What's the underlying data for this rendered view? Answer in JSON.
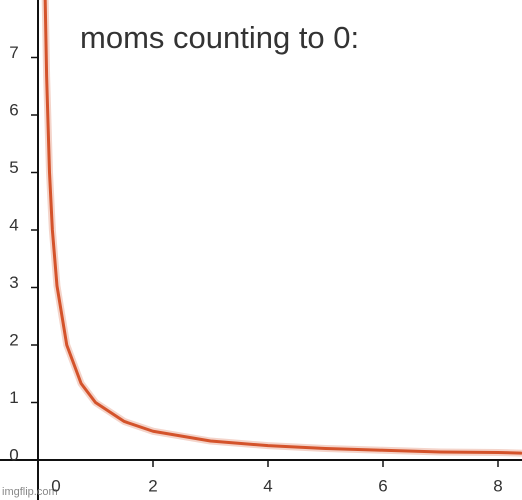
{
  "chart_data": {
    "type": "line",
    "title": "moms counting to 0:",
    "watermark": "imgflip.com",
    "x": [
      0.125,
      0.15,
      0.2,
      0.25,
      0.33,
      0.5,
      0.75,
      1,
      1.5,
      2,
      3,
      4,
      5,
      6,
      7,
      8,
      8.4
    ],
    "series": [
      {
        "color": "#d4532b",
        "values": [
          8,
          6.67,
          5,
          4,
          3.03,
          2,
          1.33,
          1,
          0.67,
          0.5,
          0.33,
          0.25,
          0.2,
          0.17,
          0.14,
          0.13,
          0.12
        ]
      }
    ],
    "xlim": [
      0,
      8.4
    ],
    "ylim": [
      0,
      8
    ],
    "xticks": [
      0,
      2,
      4,
      6,
      8
    ],
    "yticks": [
      0,
      1,
      2,
      3,
      4,
      5,
      6,
      7
    ],
    "grid": false
  }
}
